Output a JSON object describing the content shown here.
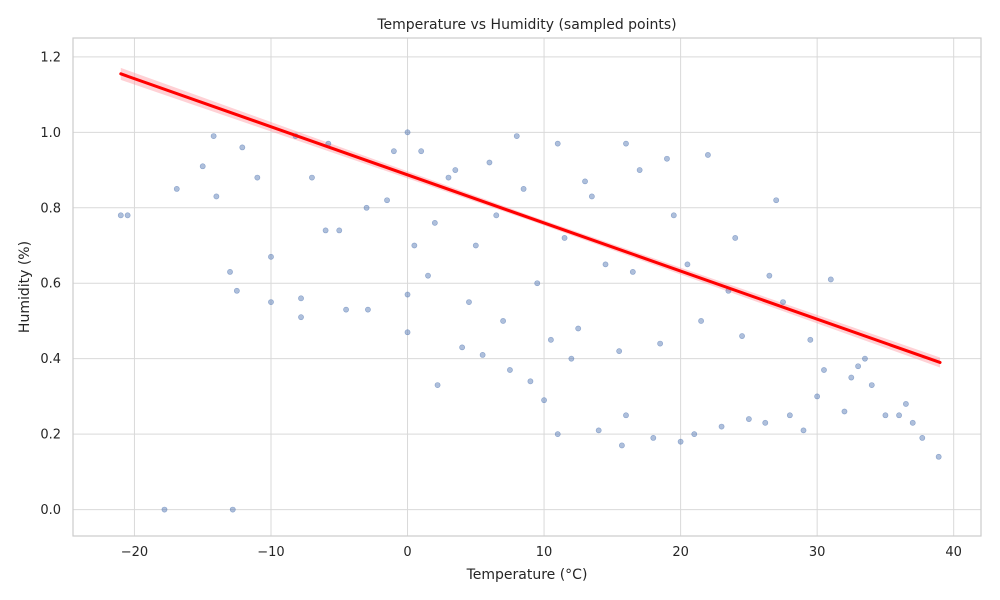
{
  "chart_data": {
    "type": "scatter",
    "title": "Temperature vs Humidity (sampled points)",
    "xlabel": "Temperature (°C)",
    "ylabel": "Humidity (%)",
    "xlim": [
      -24.5,
      42
    ],
    "ylim": [
      -0.07,
      1.25
    ],
    "x_ticks": [
      -20,
      -10,
      0,
      10,
      20,
      30,
      40
    ],
    "y_ticks": [
      0.0,
      0.2,
      0.4,
      0.6,
      0.8,
      1.0,
      1.2
    ],
    "x_tick_labels": [
      "−20",
      "−10",
      "0",
      "10",
      "20",
      "30",
      "40"
    ],
    "y_tick_labels": [
      "0.0",
      "0.2",
      "0.4",
      "0.6",
      "0.8",
      "1.0",
      "1.2"
    ],
    "grid": true,
    "colors": {
      "points": "#4c72b0",
      "regression": "#ff0000",
      "band": "#ff9aa2",
      "grid": "#d9d9d9",
      "frame": "#cccccc"
    },
    "series": [
      {
        "kind": "points",
        "x": [
          -21,
          -20.5,
          -17.8,
          -12.8,
          -16.9,
          -14.2,
          -14.0,
          -15.0,
          -12.1,
          -13.0,
          -12.5,
          -11.0,
          -10.0,
          -10.0,
          -7.8,
          -7.8,
          -8.2,
          -5.8,
          -4.5,
          -6.0,
          -2.9,
          0,
          0,
          0,
          2.2,
          1.0,
          4.0,
          5.5,
          7.5,
          9.0,
          10.0,
          11.0,
          12.0,
          14.0,
          15.7,
          16.0,
          18.0,
          20.0,
          21.0,
          23.0,
          25.0,
          26.2,
          28.0,
          29.0,
          30.0,
          31.0,
          32.0,
          33.0,
          34.0,
          35.0,
          36.0,
          37.0,
          37.7,
          38.9,
          19.0,
          16.0,
          11.0,
          8.0,
          -1.0,
          3.0,
          6.0,
          13.0,
          17.0,
          22.0,
          27.0,
          24.0,
          14.5,
          9.5,
          5.0,
          2.0,
          -3.0,
          -5.0,
          -7.0,
          1.5,
          4.5,
          7.0,
          10.5,
          12.5,
          15.5,
          18.5,
          21.5,
          24.5,
          27.5,
          30.5,
          33.5,
          36.5,
          20.5,
          23.5,
          26.5,
          29.5,
          32.5,
          19.5,
          13.5,
          8.5,
          3.5,
          -1.5,
          0.5,
          6.5,
          11.5,
          16.5
        ],
        "y": [
          0.78,
          0.78,
          0.0,
          0.0,
          0.85,
          0.99,
          0.83,
          0.91,
          0.96,
          0.63,
          0.58,
          0.88,
          0.67,
          0.55,
          0.56,
          0.51,
          0.99,
          0.97,
          0.53,
          0.74,
          0.53,
          0.47,
          0.57,
          1.0,
          0.33,
          0.95,
          0.43,
          0.41,
          0.37,
          0.34,
          0.29,
          0.2,
          0.4,
          0.21,
          0.17,
          0.25,
          0.19,
          0.18,
          0.2,
          0.22,
          0.24,
          0.23,
          0.25,
          0.21,
          0.3,
          0.61,
          0.26,
          0.38,
          0.33,
          0.25,
          0.25,
          0.23,
          0.19,
          0.14,
          0.93,
          0.97,
          0.97,
          0.99,
          0.95,
          0.88,
          0.92,
          0.87,
          0.9,
          0.94,
          0.82,
          0.72,
          0.65,
          0.6,
          0.7,
          0.76,
          0.8,
          0.74,
          0.88,
          0.62,
          0.55,
          0.5,
          0.45,
          0.48,
          0.42,
          0.44,
          0.5,
          0.46,
          0.55,
          0.37,
          0.4,
          0.28,
          0.65,
          0.58,
          0.62,
          0.45,
          0.35,
          0.78,
          0.83,
          0.85,
          0.9,
          0.82,
          0.7,
          0.78,
          0.72,
          0.63
        ]
      },
      {
        "kind": "regression",
        "x": [
          -21,
          39
        ],
        "y": [
          1.155,
          0.39
        ]
      }
    ]
  }
}
